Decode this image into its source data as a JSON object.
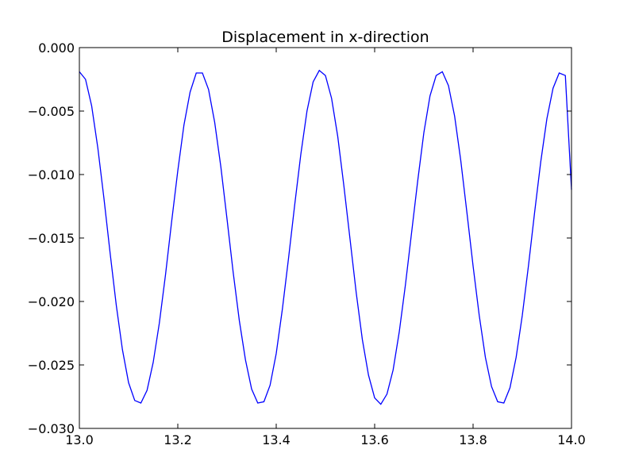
{
  "chart_data": {
    "type": "line",
    "title": "Displacement in x-direction",
    "xlabel": "",
    "ylabel": "",
    "xlim": [
      13.0,
      14.0
    ],
    "ylim": [
      -0.03,
      0.0
    ],
    "grid": false,
    "x_ticks": [
      13.0,
      13.2,
      13.4,
      13.6,
      13.8,
      14.0
    ],
    "x_tick_labels": [
      "13.0",
      "13.2",
      "13.4",
      "13.6",
      "13.8",
      "14.0"
    ],
    "y_ticks": [
      0.0,
      -0.005,
      -0.01,
      -0.015,
      -0.02,
      -0.025,
      -0.03
    ],
    "y_tick_labels": [
      "0.000",
      "−0.005",
      "−0.010",
      "−0.015",
      "−0.020",
      "−0.025",
      "−0.030"
    ],
    "series": [
      {
        "color": "#0000ff",
        "x": [
          13.0,
          13.0125,
          13.025,
          13.0375,
          13.05,
          13.0625,
          13.075,
          13.0875,
          13.1,
          13.1125,
          13.125,
          13.1375,
          13.15,
          13.1625,
          13.175,
          13.1875,
          13.2,
          13.2125,
          13.225,
          13.2375,
          13.25,
          13.2625,
          13.275,
          13.2875,
          13.3,
          13.3125,
          13.325,
          13.3375,
          13.35,
          13.3625,
          13.375,
          13.3875,
          13.4,
          13.4125,
          13.425,
          13.4375,
          13.45,
          13.4625,
          13.475,
          13.4875,
          13.5,
          13.5125,
          13.525,
          13.5375,
          13.55,
          13.5625,
          13.575,
          13.5875,
          13.6,
          13.6125,
          13.625,
          13.6375,
          13.65,
          13.6625,
          13.675,
          13.6875,
          13.7,
          13.7125,
          13.725,
          13.7375,
          13.75,
          13.7625,
          13.775,
          13.7875,
          13.8,
          13.8125,
          13.825,
          13.8375,
          13.85,
          13.8625,
          13.875,
          13.8875,
          13.9,
          13.9125,
          13.925,
          13.9375,
          13.95,
          13.9625,
          13.975,
          13.9875,
          14.0
        ],
        "y": [
          -0.0019,
          -0.0025,
          -0.0046,
          -0.0079,
          -0.0119,
          -0.0162,
          -0.0203,
          -0.0238,
          -0.0264,
          -0.0278,
          -0.028,
          -0.027,
          -0.0248,
          -0.0217,
          -0.0179,
          -0.0137,
          -0.0097,
          -0.0061,
          -0.0035,
          -0.002,
          -0.002,
          -0.0033,
          -0.0059,
          -0.0094,
          -0.0135,
          -0.0177,
          -0.0215,
          -0.0246,
          -0.0269,
          -0.028,
          -0.0279,
          -0.0266,
          -0.0241,
          -0.0206,
          -0.0166,
          -0.0124,
          -0.0084,
          -0.005,
          -0.0027,
          -0.0018,
          -0.0022,
          -0.004,
          -0.007,
          -0.0109,
          -0.0151,
          -0.0193,
          -0.023,
          -0.0258,
          -0.0276,
          -0.0281,
          -0.0273,
          -0.0254,
          -0.0224,
          -0.0187,
          -0.0146,
          -0.0105,
          -0.0067,
          -0.0038,
          -0.0022,
          -0.0019,
          -0.003,
          -0.0054,
          -0.0089,
          -0.013,
          -0.0172,
          -0.0211,
          -0.0244,
          -0.0267,
          -0.0279,
          -0.028,
          -0.0268,
          -0.0244,
          -0.0211,
          -0.0172,
          -0.013,
          -0.009,
          -0.0056,
          -0.0032,
          -0.002,
          -0.0022,
          -0.0112
        ]
      }
    ]
  }
}
